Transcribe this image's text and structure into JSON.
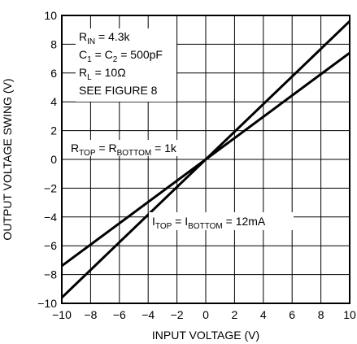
{
  "chart_data": {
    "type": "line",
    "xlabel": "INPUT VOLTAGE (V)",
    "ylabel": "OUTPUT VOLTAGE SWING (V)",
    "xlim": [
      -10,
      10
    ],
    "ylim": [
      -10,
      10
    ],
    "x_ticks": [
      -10,
      -8,
      -6,
      -4,
      -2,
      0,
      2,
      4,
      6,
      8,
      10
    ],
    "y_ticks": [
      -10,
      -8,
      -6,
      -4,
      -2,
      0,
      2,
      4,
      6,
      8,
      10
    ],
    "x_tick_labels": [
      "−10",
      "−8",
      "−6",
      "−4",
      "−2",
      "0",
      "2",
      "4",
      "6",
      "8",
      "10"
    ],
    "y_tick_labels": [
      "−10",
      "−8",
      "−6",
      "−4",
      "−2",
      "0",
      "2",
      "4",
      "6",
      "8",
      "10"
    ],
    "grid": true,
    "series": [
      {
        "x": [
          -10,
          10
        ],
        "y": [
          -9.6,
          9.6
        ]
      },
      {
        "x": [
          -10,
          10
        ],
        "y": [
          -7.4,
          7.4
        ]
      }
    ],
    "annotations": {
      "conditions": [
        {
          "main": "R",
          "sub": "IN",
          "rest": " = 4.3k"
        },
        {
          "main": "C",
          "sub": "1",
          "rest": " = C",
          "sub2": "2",
          "rest2": " = 500pF"
        },
        {
          "main": "R",
          "sub": "L",
          "rest": " = 10Ω"
        },
        {
          "main": "SEE FIGURE 8"
        }
      ],
      "r_label": {
        "p1": "R",
        "s1": "TOP",
        "p2": " = R",
        "s2": "BOTTOM",
        "p3": " = 1k"
      },
      "i_label": {
        "p1": "I",
        "s1": "TOP",
        "p2": " = I",
        "s2": "BOTTOM",
        "p3": " = 12mA"
      }
    }
  }
}
